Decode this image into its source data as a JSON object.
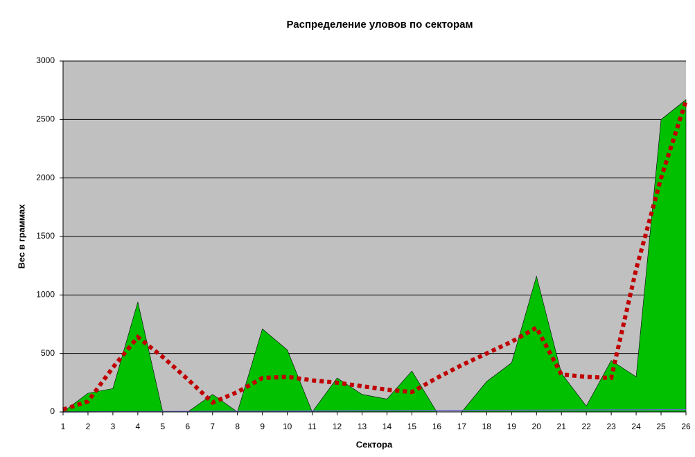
{
  "chart_data": {
    "type": "area",
    "title": "Распределение уловов по секторам",
    "x_label": "Сектора",
    "y_label": "Вес в граммах",
    "categories": [
      "1",
      "2",
      "3",
      "4",
      "5",
      "6",
      "7",
      "8",
      "9",
      "10",
      "11",
      "12",
      "13",
      "14",
      "15",
      "16",
      "17",
      "18",
      "19",
      "20",
      "21",
      "22",
      "23",
      "24",
      "25",
      "26"
    ],
    "series": [
      {
        "kind": "area",
        "color": "#00c000",
        "values": [
          0,
          160,
          200,
          940,
          0,
          0,
          150,
          0,
          710,
          530,
          0,
          290,
          150,
          110,
          350,
          0,
          0,
          260,
          420,
          1160,
          330,
          50,
          440,
          300,
          2500,
          2670
        ]
      },
      {
        "kind": "line",
        "color": "#6666cc",
        "values": [
          0,
          1,
          2,
          3,
          3,
          4,
          5,
          6,
          6,
          7,
          8,
          9,
          10,
          10,
          11,
          12,
          13,
          14,
          14,
          15,
          16,
          17,
          18,
          18,
          19,
          20
        ]
      },
      {
        "kind": "dotted",
        "color": "#c00000",
        "values": [
          20,
          90,
          380,
          640,
          470,
          280,
          80,
          170,
          290,
          300,
          270,
          250,
          220,
          190,
          170,
          290,
          400,
          500,
          600,
          720,
          320,
          300,
          290,
          1220,
          2000,
          2660
        ]
      }
    ],
    "ylim": [
      0,
      3000
    ],
    "yticks": [
      0,
      500,
      1000,
      1500,
      2000,
      2500,
      3000
    ],
    "grid": true
  }
}
